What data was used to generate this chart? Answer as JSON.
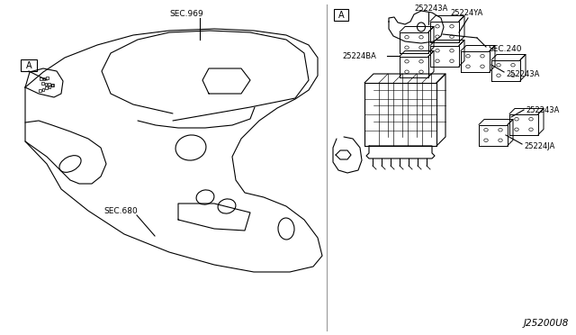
{
  "bg_color": "#ffffff",
  "line_color": "#000000",
  "fig_width": 6.4,
  "fig_height": 3.72,
  "labels": {
    "sec680": "SEC.680",
    "sec969": "SEC.969",
    "sec240": "SEC.240",
    "label_A": "A",
    "part_ja": "25224JA",
    "part_ba1": "25224BA",
    "part_ya": "25224YA",
    "part_243a_upper": "252243A",
    "part_243a_lower": "252243A",
    "part_243a_bottom": "252243A",
    "diagram_id": "J25200U8"
  }
}
